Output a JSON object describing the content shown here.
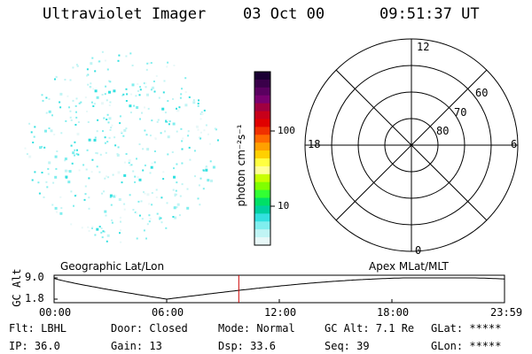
{
  "header": {
    "title": "Ultraviolet Imager",
    "date": "03 Oct 00",
    "time": "09:51:37 UT"
  },
  "colorbar": {
    "unit_label": "photon cm⁻²s⁻¹",
    "ticks": [
      "100",
      "10"
    ],
    "colors": [
      "#1a0033",
      "#3a004a",
      "#5a0060",
      "#7a0070",
      "#a00040",
      "#c8001a",
      "#e00000",
      "#f03000",
      "#ff6a00",
      "#ffa000",
      "#ffd000",
      "#ffff40",
      "#ffff99",
      "#c8ff00",
      "#80ff00",
      "#33ff33",
      "#00e066",
      "#00d0a0",
      "#33e0e0",
      "#80eeee",
      "#c0f4f4",
      "#e8f8f8"
    ]
  },
  "polar": {
    "lat_labels": [
      "80",
      "70",
      "60"
    ],
    "mlt_labels": {
      "top": "12",
      "right": "6",
      "bottom": "0",
      "left": "18"
    }
  },
  "timeline": {
    "left_title": "Geographic Lat/Lon",
    "right_title": "Apex MLat/MLT",
    "ylabel": "GC Alt",
    "yticks": [
      "9.0",
      "1.8"
    ],
    "xticks": [
      "00:00",
      "06:00",
      "12:00",
      "18:00",
      "23:59"
    ],
    "current_time_fraction": 0.41,
    "marker_color": "#cc0000"
  },
  "info": {
    "filter": "Flt: LBHL",
    "ip": "IP: 36.0",
    "door": "Door: Closed",
    "gain": "Gain: 13",
    "mode": "Mode: Normal",
    "dsp": "Dsp:    33.6",
    "gc_alt": "GC Alt: 7.1 Re",
    "seq": "Seq: 39",
    "glat": "GLat: *****",
    "glon": "GLon: *****"
  }
}
